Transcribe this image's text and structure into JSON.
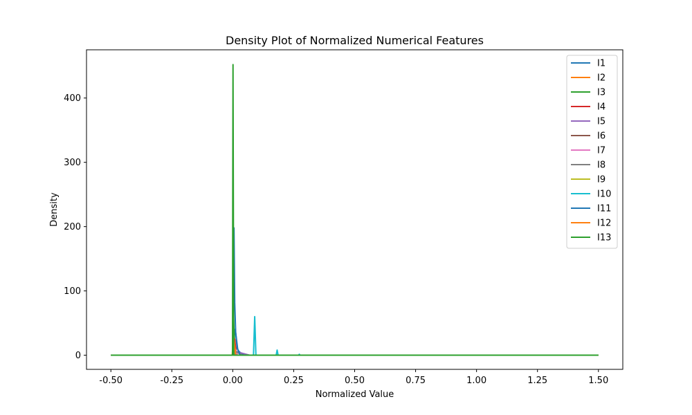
{
  "chart_data": {
    "type": "line",
    "title": "Density Plot of Normalized Numerical Features",
    "xlabel": "Normalized Value",
    "ylabel": "Density",
    "xlim": [
      -0.6,
      1.6
    ],
    "ylim": [
      -22,
      475
    ],
    "xticks": [
      "-0.50",
      "-0.25",
      "0.00",
      "0.25",
      "0.50",
      "0.75",
      "1.00",
      "1.25",
      "1.50"
    ],
    "xtick_values": [
      -0.5,
      -0.25,
      0.0,
      0.25,
      0.5,
      0.75,
      1.0,
      1.25,
      1.5
    ],
    "yticks": [
      "0",
      "100",
      "200",
      "300",
      "400"
    ],
    "ytick_values": [
      0,
      100,
      200,
      300,
      400
    ],
    "grid": false,
    "legend_position": "top-right",
    "series": [
      {
        "name": "I1",
        "color": "#1f77b4",
        "x": [
          -0.5,
          0.0,
          0.004,
          0.008,
          0.012,
          0.018,
          0.025,
          0.035,
          0.05,
          1.5
        ],
        "y": [
          0,
          0,
          5,
          40,
          35,
          10,
          6,
          3,
          0,
          0
        ]
      },
      {
        "name": "I2",
        "color": "#ff7f0e",
        "x": [
          -0.5,
          -0.002,
          0.0,
          0.002,
          0.004,
          0.01,
          1.5
        ],
        "y": [
          0,
          0,
          15,
          35,
          10,
          0,
          0
        ]
      },
      {
        "name": "I3",
        "color": "#2ca02c",
        "x": [
          -0.5,
          0.0,
          0.003,
          0.006,
          0.01,
          0.02,
          1.5
        ],
        "y": [
          0,
          0,
          60,
          30,
          8,
          0,
          0
        ]
      },
      {
        "name": "I4",
        "color": "#d62728",
        "x": [
          -0.5,
          0.0,
          0.004,
          0.008,
          0.015,
          1.5
        ],
        "y": [
          0,
          0,
          20,
          25,
          0,
          0
        ]
      },
      {
        "name": "I5",
        "color": "#9467bd",
        "x": [
          -0.5,
          0.0,
          0.01,
          0.02,
          0.03,
          0.05,
          0.07,
          1.5
        ],
        "y": [
          0,
          0,
          3,
          6,
          4,
          2,
          0,
          0
        ]
      },
      {
        "name": "I6",
        "color": "#8c564b",
        "x": [
          -0.5,
          0.0,
          0.005,
          0.01,
          0.02,
          1.5
        ],
        "y": [
          0,
          0,
          12,
          8,
          0,
          0
        ]
      },
      {
        "name": "I7",
        "color": "#e377c2",
        "x": [
          -0.5,
          0.0,
          0.005,
          0.01,
          0.02,
          1.5
        ],
        "y": [
          0,
          0,
          14,
          9,
          0,
          0
        ]
      },
      {
        "name": "I8",
        "color": "#7f7f7f",
        "x": [
          -0.5,
          0.0,
          0.01,
          0.02,
          0.04,
          1.5
        ],
        "y": [
          0,
          0,
          6,
          4,
          0,
          0
        ]
      },
      {
        "name": "I9",
        "color": "#bcbd22",
        "x": [
          -0.5,
          0.0,
          0.003,
          0.006,
          0.012,
          1.5
        ],
        "y": [
          0,
          0,
          25,
          18,
          0,
          0
        ]
      },
      {
        "name": "I10",
        "color": "#17becf",
        "x": [
          -0.5,
          0.085,
          0.09,
          0.095,
          0.178,
          0.182,
          0.186,
          0.27,
          0.273,
          0.276,
          1.5
        ],
        "y": [
          0,
          0,
          60,
          0,
          0,
          8,
          0,
          0,
          1.5,
          0,
          0
        ]
      },
      {
        "name": "I11",
        "color": "#1f77b4",
        "x": [
          -0.5,
          0.0,
          0.0025,
          0.005,
          0.008,
          0.012,
          0.02,
          0.03,
          1.5
        ],
        "y": [
          0,
          0,
          120,
          198,
          82,
          35,
          10,
          0,
          0
        ]
      },
      {
        "name": "I12",
        "color": "#ff7f0e",
        "x": [
          -0.5,
          0.0,
          0.003,
          0.006,
          0.012,
          1.5
        ],
        "y": [
          0,
          0,
          30,
          20,
          0,
          0
        ]
      },
      {
        "name": "I13",
        "color": "#2ca02c",
        "x": [
          -0.5,
          -0.001,
          0.0,
          0.001,
          0.002,
          0.004,
          1.5
        ],
        "y": [
          0,
          0,
          250,
          452,
          300,
          0,
          0
        ]
      }
    ]
  }
}
